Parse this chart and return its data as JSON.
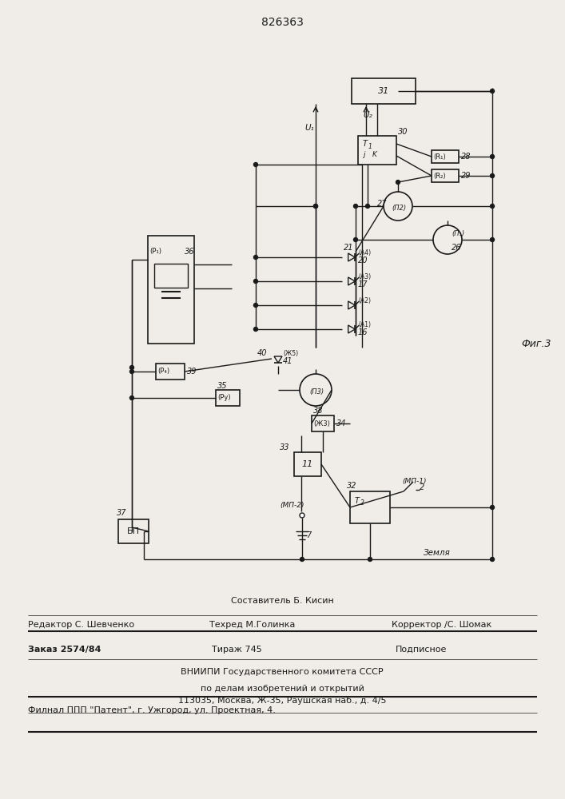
{
  "title": "826363",
  "fig3_label": "Фиг.3",
  "bg_color": "#f0ede8",
  "line_color": "#1a1a1a",
  "footer": {
    "line1": "Составитель Б. Кисин",
    "editor": "Редактор С. Шевченко",
    "tech": "Техред М.Голинка",
    "corrector": "Корректор /С. Шомак",
    "order": "Заказ 2574/84",
    "tirazh": "Тираж 745",
    "podp": "Подписное",
    "vniip1": "ВНИИПИ Государственного комитета СССР",
    "vniip2": "по делам изобретений и открытий",
    "vniip3": "113035, Москва, Ж-35, Раушская наб., д. 4/5",
    "filial": "Филнал ППП \"Патент\", г. Ужгород, ул. Проектная, 4."
  }
}
